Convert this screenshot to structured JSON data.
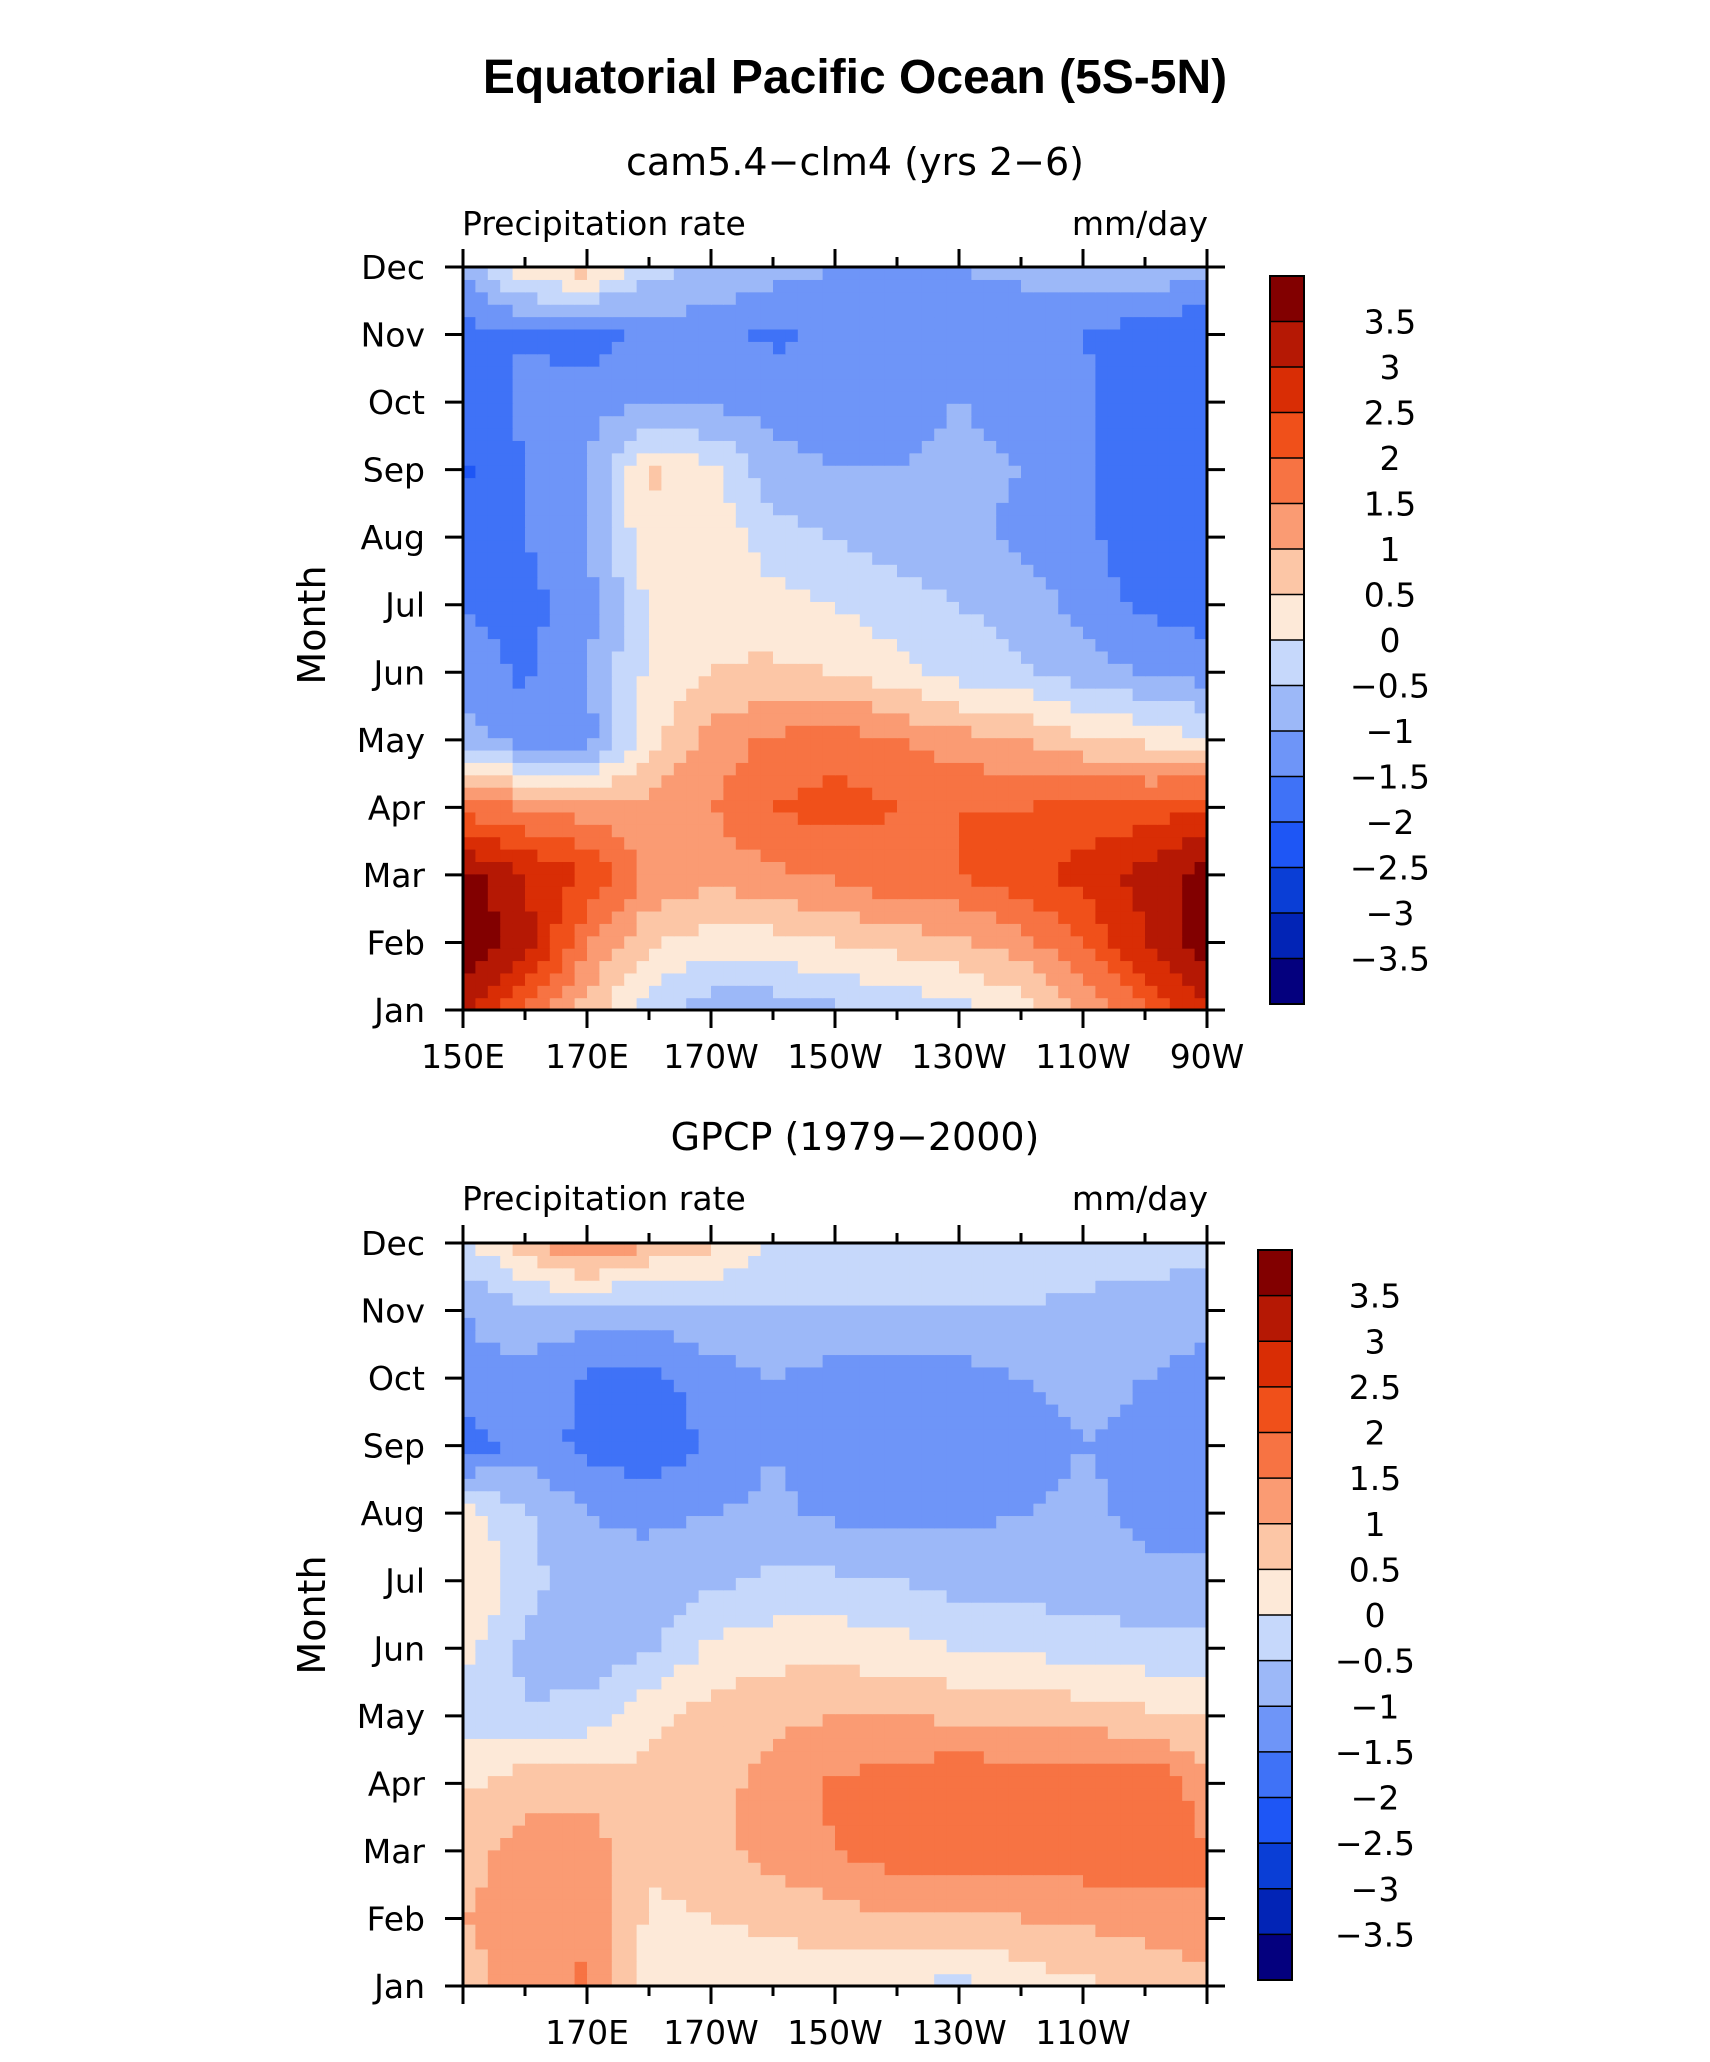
{
  "title": "Equatorial Pacific Ocean (5S-5N)",
  "colorbar": {
    "levels": [
      -3.5,
      -3,
      -2.5,
      -2,
      -1.5,
      -1,
      -0.5,
      0,
      0.5,
      1,
      1.5,
      2,
      2.5,
      3,
      3.5
    ],
    "labels": [
      "3.5",
      "3",
      "2.5",
      "2",
      "1.5",
      "1",
      "0.5",
      "0",
      "−0.5",
      "−1",
      "−1.5",
      "−2",
      "−2.5",
      "−3",
      "−3.5"
    ],
    "colors_low_to_high": [
      "#04007e",
      "#0224b6",
      "#0a3ed6",
      "#1e56f5",
      "#3f72f7",
      "#6e95f8",
      "#9cb8f8",
      "#c6d8fb",
      "#fde9d8",
      "#fcc6a6",
      "#fa9b73",
      "#f77343",
      "#f0501a",
      "#d92d05",
      "#b51804",
      "#820000"
    ]
  },
  "chart_data": [
    {
      "type": "heatmap",
      "subtitle": "cam5.4−clm4 (yrs 2−6)",
      "left_label": "Precipitation rate",
      "right_label": "mm/day",
      "ylabel": "Month",
      "x_tick_labels": [
        "150E",
        "170E",
        "170W",
        "150W",
        "130W",
        "110W",
        "90W"
      ],
      "x": [
        150,
        160,
        170,
        180,
        190,
        200,
        210,
        220,
        230,
        240,
        250,
        260,
        270
      ],
      "y": [
        "Jan",
        "Feb",
        "Mar",
        "Apr",
        "May",
        "Jun",
        "Jul",
        "Aug",
        "Sep",
        "Oct",
        "Nov",
        "Dec"
      ],
      "z": [
        [
          3.2,
          2.0,
          0.8,
          -0.3,
          -0.8,
          -0.8,
          -0.6,
          -0.4,
          -0.2,
          0.2,
          1.0,
          2.0,
          3.0
        ],
        [
          4.0,
          3.2,
          1.5,
          0.6,
          0.2,
          0.3,
          0.5,
          0.7,
          0.9,
          1.3,
          2.0,
          3.0,
          3.8
        ],
        [
          3.7,
          3.0,
          2.5,
          1.4,
          1.2,
          1.4,
          1.6,
          1.9,
          2.0,
          2.3,
          2.7,
          3.2,
          3.8
        ],
        [
          1.8,
          1.5,
          1.2,
          1.2,
          1.5,
          2.0,
          2.2,
          2.0,
          2.0,
          2.0,
          2.2,
          2.2,
          2.5
        ],
        [
          -0.8,
          -1.2,
          -1.2,
          0.3,
          1.2,
          1.6,
          1.8,
          1.5,
          1.2,
          1.0,
          0.6,
          0.4,
          0.0
        ],
        [
          -1.2,
          -1.6,
          -1.0,
          0.1,
          0.5,
          0.6,
          0.5,
          0.2,
          -0.2,
          -0.4,
          -0.8,
          -1.0,
          -1.2
        ],
        [
          -1.5,
          -1.7,
          -1.2,
          0.0,
          0.4,
          0.2,
          0.0,
          -0.3,
          -0.5,
          -0.7,
          -1.2,
          -1.6,
          -1.8
        ],
        [
          -1.6,
          -1.5,
          -1.0,
          0.4,
          0.4,
          -0.3,
          -0.5,
          -0.7,
          -0.9,
          -1.1,
          -1.4,
          -1.8,
          -2.0
        ],
        [
          -2.1,
          -1.5,
          -1.0,
          0.6,
          0.1,
          -0.8,
          -1.0,
          -1.0,
          -0.9,
          -1.0,
          -1.4,
          -1.8,
          -2.0
        ],
        [
          -1.8,
          -1.4,
          -1.2,
          -1.1,
          -1.1,
          -1.2,
          -1.2,
          -1.1,
          -1.0,
          -1.1,
          -1.4,
          -1.8,
          -2.0
        ],
        [
          -1.7,
          -1.5,
          -1.8,
          -1.3,
          -1.3,
          -1.6,
          -1.4,
          -1.3,
          -1.2,
          -1.3,
          -1.5,
          -1.8,
          -2.0
        ],
        [
          -1.0,
          0.3,
          0.8,
          -0.3,
          -0.6,
          -0.8,
          -1.0,
          -1.0,
          -1.0,
          -0.9,
          -0.6,
          -0.6,
          -0.8
        ]
      ]
    },
    {
      "type": "heatmap",
      "subtitle": "GPCP (1979−2000)",
      "left_label": "Precipitation rate",
      "right_label": "mm/day",
      "ylabel": "Month",
      "x_tick_labels": [
        "",
        "170E",
        "170W",
        "150W",
        "130W",
        "110W",
        ""
      ],
      "x": [
        150,
        160,
        170,
        180,
        190,
        200,
        210,
        220,
        230,
        240,
        250,
        260,
        270
      ],
      "y": [
        "Jan",
        "Feb",
        "Mar",
        "Apr",
        "May",
        "Jun",
        "Jul",
        "Aug",
        "Sep",
        "Oct",
        "Nov",
        "Dec"
      ],
      "z": [
        [
          0.8,
          1.2,
          1.6,
          0.3,
          0.3,
          0.2,
          0.2,
          0.1,
          -0.2,
          0.2,
          0.4,
          0.6,
          0.8
        ],
        [
          1.0,
          1.3,
          1.4,
          0.4,
          0.5,
          0.6,
          0.8,
          0.9,
          0.9,
          1.0,
          1.1,
          1.2,
          1.5
        ],
        [
          0.8,
          1.2,
          1.3,
          0.6,
          0.8,
          1.2,
          1.5,
          1.8,
          1.9,
          1.8,
          1.8,
          1.9,
          1.5
        ],
        [
          0.4,
          0.8,
          0.8,
          0.6,
          0.8,
          1.2,
          1.6,
          1.7,
          2.0,
          1.8,
          1.8,
          2.0,
          1.2
        ],
        [
          -0.3,
          -0.5,
          -0.3,
          0.4,
          0.7,
          0.9,
          1.0,
          1.0,
          0.9,
          0.8,
          0.8,
          0.6,
          0.5
        ],
        [
          0.2,
          -0.6,
          -0.8,
          -0.6,
          0.1,
          0.3,
          0.3,
          0.2,
          0.0,
          -0.1,
          -0.2,
          -0.3,
          -0.4
        ],
        [
          0.6,
          -0.3,
          -0.9,
          -0.8,
          -0.6,
          -0.4,
          -0.4,
          -0.5,
          -0.7,
          -0.7,
          -0.8,
          -0.9,
          -0.8
        ],
        [
          0.2,
          -0.4,
          -1.0,
          -1.1,
          -1.0,
          -0.9,
          -1.1,
          -1.2,
          -1.1,
          -1.0,
          -0.9,
          -1.1,
          -1.2
        ],
        [
          -1.8,
          -1.3,
          -1.6,
          -1.9,
          -1.4,
          -1.0,
          -1.3,
          -1.4,
          -1.3,
          -1.2,
          -1.0,
          -1.1,
          -1.4
        ],
        [
          -1.2,
          -1.2,
          -1.6,
          -1.7,
          -1.2,
          -1.0,
          -1.2,
          -1.3,
          -1.2,
          -1.0,
          -0.9,
          -1.0,
          -1.2
        ],
        [
          -1.0,
          -0.6,
          -0.7,
          -0.8,
          -0.6,
          -0.6,
          -0.5,
          -0.5,
          -0.5,
          -0.5,
          -0.6,
          -0.7,
          -0.8
        ],
        [
          -0.2,
          0.8,
          1.6,
          1.0,
          0.6,
          0.0,
          -0.4,
          -0.3,
          -0.2,
          -0.3,
          -0.3,
          -0.3,
          -0.3
        ]
      ]
    }
  ]
}
